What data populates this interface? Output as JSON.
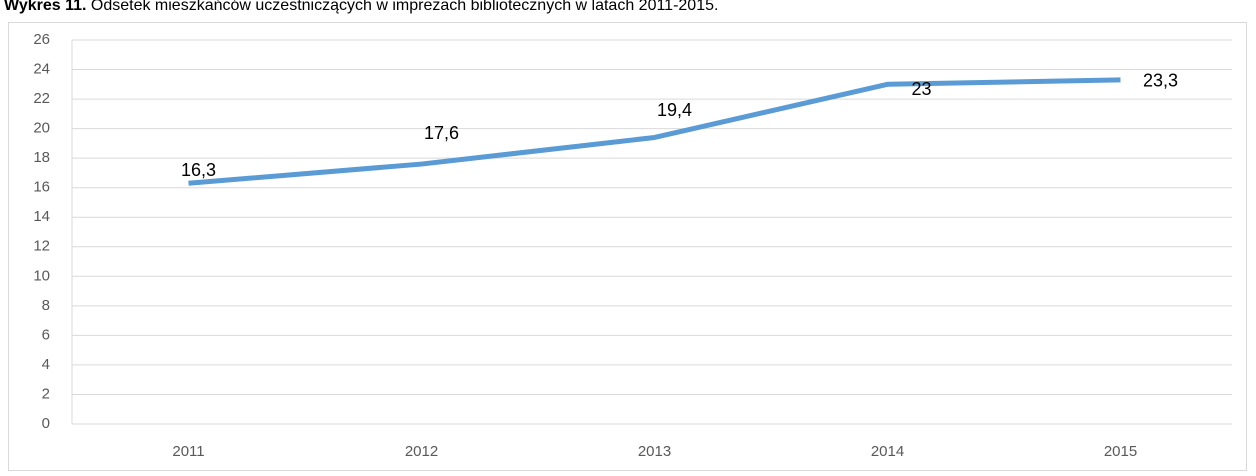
{
  "chart_data": {
    "type": "line",
    "title": {
      "label": "Wykres 11.",
      "text": "Odsetek mieszkańców uczestniczących w imprezach bibliotecznych w latach 2011-2015."
    },
    "categories": [
      "2011",
      "2012",
      "2013",
      "2014",
      "2015"
    ],
    "series": [
      {
        "name": "Odsetek",
        "color": "#5b9bd5",
        "values": [
          16.3,
          17.6,
          19.4,
          23,
          23.3
        ],
        "value_labels": [
          "16,3",
          "17,6",
          "19,4",
          "23",
          "23,3"
        ]
      }
    ],
    "ylim": [
      0,
      26
    ],
    "yticks": [
      0,
      2,
      4,
      6,
      8,
      10,
      12,
      14,
      16,
      18,
      20,
      22,
      24,
      26
    ],
    "grid": true
  }
}
